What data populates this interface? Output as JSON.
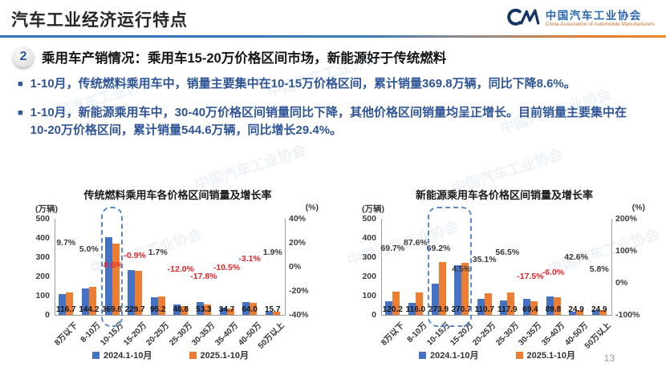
{
  "header": {
    "title": "汽车工业经济运行特点",
    "logo": {
      "org_cn": "中国汽车工业协会",
      "org_en": "China Association of Automobile Manufacturers"
    }
  },
  "section": {
    "number": "2",
    "title": "乘用车产销情况：乘用车15-20万价格区间市场，新能源好于传统燃料"
  },
  "bullets": [
    "1-10月，传统燃料乘用车中，销量主要集中在10-15万价格区间，累计销量369.8万辆，同比下降8.6%。",
    "1-10月，新能源乘用车中，30-40万价格区间销量同比下降，其他价格区间销量均呈正增长。目前销量主要集中在10-20万价格区间，累计销量544.6万辆，同比增长29.4%。"
  ],
  "page_number": "13",
  "watermark": "中国汽车工业协会",
  "colors": {
    "bar_2024": "#4472C4",
    "bar_2025": "#ED7D31",
    "growth_negative": "#E0262A",
    "growth_positive": "#3A3A3A",
    "accent_blue": "#2F5597"
  },
  "chart_data": [
    {
      "type": "bar",
      "title": "传统燃料乘用车各价格区间销量及增长率",
      "unit_left": "(万辆)",
      "unit_right": "(%)",
      "categories": [
        "8万以下",
        "8-10万",
        "10-15万",
        "15-20万",
        "20-25万",
        "25-30万",
        "30-35万",
        "35-40万",
        "40-50万",
        "50万以上"
      ],
      "series": [
        {
          "name": "2024.1-10月",
          "values": [
            106.4,
            137.3,
            404.6,
            231.8,
            93.6,
            53.2,
            64.8,
            38.8,
            66.0,
            15.4
          ]
        },
        {
          "name": "2025.1-10月",
          "values": [
            116.7,
            144.2,
            369.8,
            229.7,
            95.2,
            46.8,
            53.3,
            34.7,
            64.0,
            15.7
          ]
        }
      ],
      "value_label_series": 1,
      "growth_pct": [
        9.7,
        5.0,
        -8.6,
        -0.9,
        1.7,
        -12.0,
        -17.8,
        -10.5,
        -3.1,
        1.9
      ],
      "ylim_left": [
        0,
        500
      ],
      "yticks_left": [
        0,
        100,
        200,
        300,
        400,
        500
      ],
      "ylim_right": [
        -40,
        40
      ],
      "yticks_right": [
        {
          "v": 40,
          "label": "40%"
        },
        {
          "v": 20,
          "label": "20%"
        },
        {
          "v": 0,
          "label": "0%"
        },
        {
          "v": -20,
          "label": "-20%"
        },
        {
          "v": -40,
          "label": "-40%"
        }
      ],
      "highlight": {
        "from": 2,
        "to": 2
      },
      "legend": [
        "2024.1-10月",
        "2025.1-10月"
      ],
      "grid": false,
      "legend_position": "bottom"
    },
    {
      "type": "bar",
      "title": "新能源乘用车各价格区间销量及增长率",
      "unit_left": "(万辆)",
      "unit_right": "(%)",
      "categories": [
        "8万以下",
        "8-10万",
        "10-15万",
        "15-20万",
        "20-25万",
        "25-30万",
        "30-35万",
        "35-40万",
        "40-50万",
        "50万以上"
      ],
      "series": [
        {
          "name": "2024.1-10月",
          "values": [
            70.8,
            61.8,
            161.9,
            259.0,
            81.9,
            75.3,
            84.1,
            95.5,
            17.5,
            23.5
          ]
        },
        {
          "name": "2025.1-10月",
          "values": [
            120.2,
            116.0,
            273.9,
            270.7,
            110.7,
            117.9,
            69.4,
            89.8,
            24.9,
            24.9
          ]
        }
      ],
      "value_label_series": 1,
      "growth_pct": [
        69.7,
        87.6,
        69.2,
        4.5,
        35.1,
        56.5,
        -17.5,
        -6.0,
        42.6,
        5.8
      ],
      "ylim_left": [
        0,
        500
      ],
      "yticks_left": [
        0,
        100,
        200,
        300,
        400,
        500
      ],
      "ylim_right": [
        -100,
        200
      ],
      "yticks_right": [
        {
          "v": 200,
          "label": "200%"
        },
        {
          "v": 100,
          "label": "100%"
        },
        {
          "v": 0,
          "label": "0%"
        },
        {
          "v": -100,
          "label": "-100%"
        }
      ],
      "highlight": {
        "from": 2,
        "to": 3
      },
      "legend": [
        "2024.1-10月",
        "2025.1-10月"
      ],
      "grid": false,
      "legend_position": "bottom"
    }
  ]
}
